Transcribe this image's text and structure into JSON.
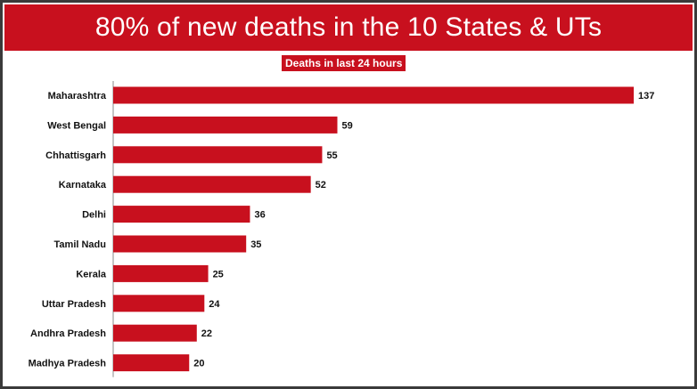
{
  "header": {
    "title": "80% of new deaths in the 10 States & UTs"
  },
  "colors": {
    "accent": "#c8101e",
    "bar": "#c8101e"
  },
  "chart_data": {
    "type": "bar",
    "orientation": "horizontal",
    "title": "80% of new deaths in the 10 States & UTs",
    "subtitle": "Deaths in last 24 hours",
    "categories": [
      "Maharashtra",
      "West Bengal",
      "Chhattisgarh",
      "Karnataka",
      "Delhi",
      "Tamil Nadu",
      "Kerala",
      "Uttar Pradesh",
      "Andhra Pradesh",
      "Madhya Pradesh"
    ],
    "values": [
      137,
      59,
      55,
      52,
      36,
      35,
      25,
      24,
      22,
      20
    ],
    "data_labels": [
      "137",
      "59",
      "55",
      "52",
      "36",
      "35",
      "25",
      "24",
      "22",
      "20"
    ],
    "xlim": [
      0,
      137
    ],
    "grid": false,
    "legend": "none"
  }
}
